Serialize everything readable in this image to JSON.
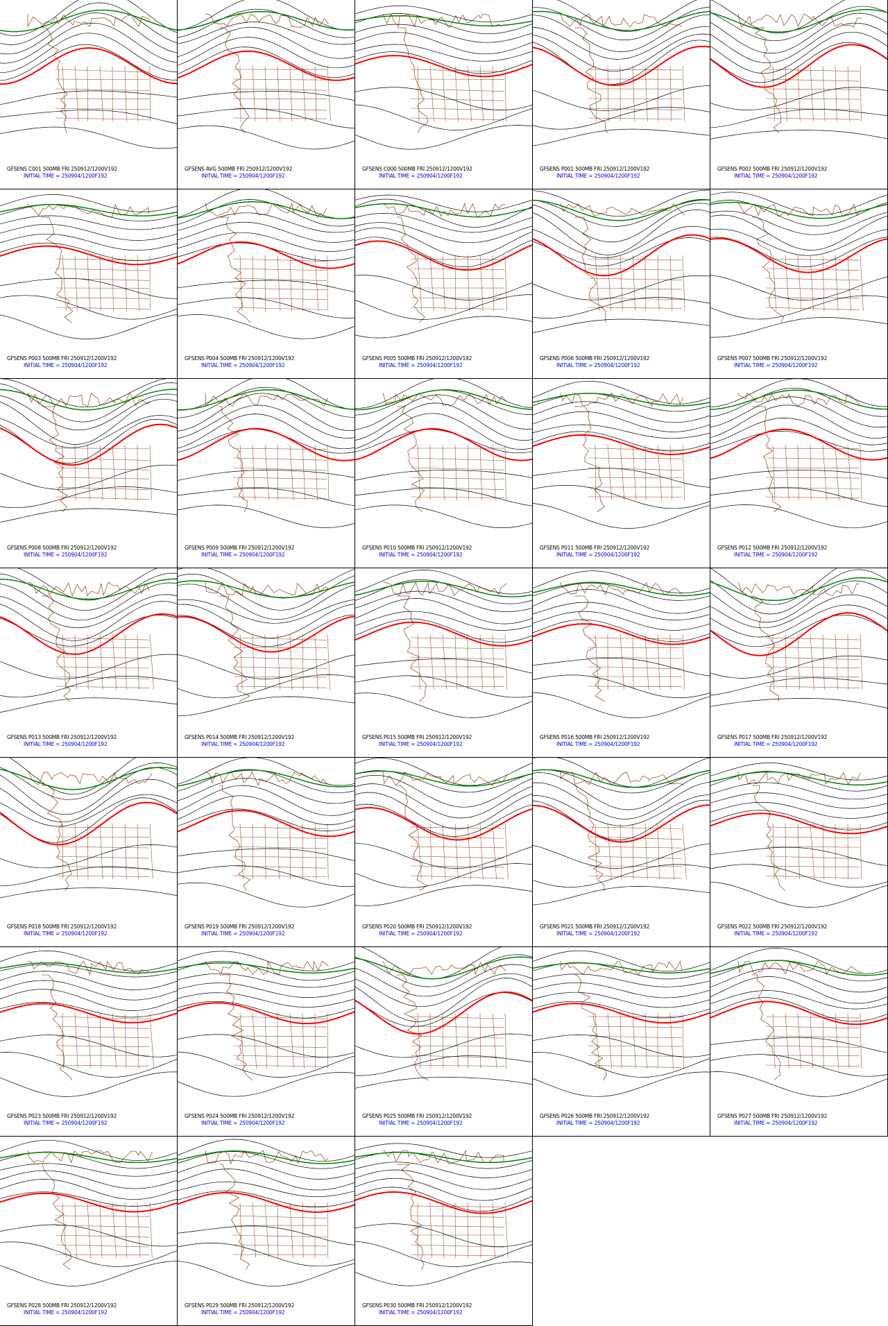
{
  "panels": [
    {
      "title": "GFSENS C001 500MB FRI 250912/1200V192",
      "init": "INITIAL TIME = 250904/1200F192"
    },
    {
      "title": "GFSENS AVG 500MB FRI 250912/1200V192",
      "init": "INITIAL TIME = 250904/1200F192"
    },
    {
      "title": "GFSENS C000 500MB FRI 250912/1200V192",
      "init": "INITIAL TIME = 250904/1200F192"
    },
    {
      "title": "GFSENS P001 500MB FRI 250912/1200V192",
      "init": "INITIAL TIME = 250904/1200F192"
    },
    {
      "title": "GFSENS P002 500MB FRI 250912/1200V192",
      "init": "INITIAL TIME = 250904/1200F192"
    },
    {
      "title": "GFSENS P003 500MB FRI 250912/1200V192",
      "init": "INITIAL TIME = 250904/1200F192"
    },
    {
      "title": "GFSENS P004 500MB FRI 250912/1200V192",
      "init": "INITIAL TIME = 250904/1200F192"
    },
    {
      "title": "GFSENS P005 500MB FRI 250912/1200V192",
      "init": "INITIAL TIME = 250904/1200F192"
    },
    {
      "title": "GFSENS P006 500MB FRI 250912/1200V192",
      "init": "INITIAL TIME = 250904/1200F192"
    },
    {
      "title": "GFSENS P007 500MB FRI 250912/1200V192",
      "init": "INITIAL TIME = 250904/1200F192"
    },
    {
      "title": "GFSENS P008 500MB FRI 250912/1200V192",
      "init": "INITIAL TIME = 250904/1200F192"
    },
    {
      "title": "GFSENS P009 500MB FRI 250912/1200V192",
      "init": "INITIAL TIME = 250904/1200F192"
    },
    {
      "title": "GFSENS P010 500MB FRI 250912/1200V192",
      "init": "INITIAL TIME = 250904/1200F192"
    },
    {
      "title": "GFSENS P011 500MB FRI 250912/1200V192",
      "init": "INITIAL TIME = 250904/1200F192"
    },
    {
      "title": "GFSENS P012 500MB FRI 250912/1200V192",
      "init": "INITIAL TIME = 250904/1200F192"
    },
    {
      "title": "GFSENS P013 500MB FRI 250912/1200V192",
      "init": "INITIAL TIME = 250904/1200F192"
    },
    {
      "title": "GFSENS P014 500MB FRI 250912/1200V192",
      "init": "INITIAL TIME = 250904/1200F192"
    },
    {
      "title": "GFSENS P015 500MB FRI 250912/1200V192",
      "init": "INITIAL TIME = 250904/1200F192"
    },
    {
      "title": "GFSENS P016 500MB FRI 250912/1200V192",
      "init": "INITIAL TIME = 250904/1200F192"
    },
    {
      "title": "GFSENS P017 500MB FRI 250912/1200V192",
      "init": "INITIAL TIME = 250904/1200F192"
    },
    {
      "title": "GFSENS P018 500MB FRI 250912/1200V192",
      "init": "INITIAL TIME = 250904/1200F192"
    },
    {
      "title": "GFSENS P019 500MB FRI 250912/1200V192",
      "init": "INITIAL TIME = 250904/1200F192"
    },
    {
      "title": "GFSENS P020 500MB FRI 250912/1200V192",
      "init": "INITIAL TIME = 250904/1200F192"
    },
    {
      "title": "GFSENS P021 500MB FRI 250912/1200V192",
      "init": "INITIAL TIME = 250904/1200F192"
    },
    {
      "title": "GFSENS P022 500MB FRI 250912/1200V192",
      "init": "INITIAL TIME = 250904/1200F192"
    },
    {
      "title": "GFSENS P023 500MB FRI 250912/1200V192",
      "init": "INITIAL TIME = 250904/1200F192"
    },
    {
      "title": "GFSENS P024 500MB FRI 250912/1200V192",
      "init": "INITIAL TIME = 250904/1200F192"
    },
    {
      "title": "GFSENS P025 500MB FRI 250912/1200V192",
      "init": "INITIAL TIME = 250904/1200F192"
    },
    {
      "title": "GFSENS P026 500MB FRI 250912/1200V192",
      "init": "INITIAL TIME = 250904/1200F192"
    },
    {
      "title": "GFSENS P027 500MB FRI 250912/1200V192",
      "init": "INITIAL TIME = 250904/1200F192"
    },
    {
      "title": "GFSENS P028 500MB FRI 250912/1200V192",
      "init": "INITIAL TIME = 250904/1200F192"
    },
    {
      "title": "GFSENS P029 500MB FRI 250912/1200V192",
      "init": "INITIAL TIME = 250904/1200F192"
    },
    {
      "title": "GFSENS P030 500MB FRI 250912/1200V192",
      "init": "INITIAL TIME = 250904/1200F192"
    }
  ]
}
